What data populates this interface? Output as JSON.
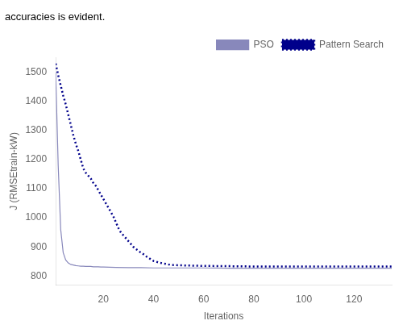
{
  "chart_data": {
    "type": "line",
    "title": "accuracies is evident.",
    "xlabel": "Iterations",
    "ylabel": "J (RMSEtrain-kW)",
    "xlim": [
      1,
      135
    ],
    "ylim": [
      770,
      1550
    ],
    "xticks": [
      20,
      40,
      60,
      80,
      100,
      120
    ],
    "yticks": [
      800,
      900,
      1000,
      1100,
      1200,
      1300,
      1400,
      1500
    ],
    "grid": false,
    "legend": "upper right",
    "series": [
      {
        "name": "PSO",
        "color": "#8888bb",
        "line_style": "solid",
        "marker": "none",
        "x": [
          1,
          2,
          3,
          4,
          5,
          6,
          7,
          8,
          9,
          10,
          11,
          12,
          13,
          14,
          15,
          16,
          17,
          18,
          19,
          20,
          25,
          30,
          35,
          40,
          50,
          60,
          70,
          80,
          90,
          100,
          110,
          120,
          130,
          135
        ],
        "values": [
          1500,
          1180,
          960,
          880,
          855,
          845,
          840,
          838,
          836,
          835,
          834,
          834,
          833,
          833,
          833,
          832,
          832,
          832,
          831,
          831,
          830,
          829,
          829,
          828,
          828,
          828,
          827,
          827,
          827,
          827,
          827,
          827,
          827,
          827
        ]
      },
      {
        "name": "Pattern Search",
        "color": "#00008B",
        "line_style": "dotted",
        "marker": "none",
        "x": [
          1,
          2,
          3,
          4,
          5,
          6,
          7,
          8,
          9,
          10,
          11,
          12,
          13,
          14,
          15,
          16,
          17,
          18,
          19,
          20,
          21,
          22,
          23,
          24,
          25,
          26,
          27,
          28,
          29,
          30,
          31,
          32,
          33,
          34,
          35,
          36,
          37,
          38,
          39,
          40,
          42,
          44,
          46,
          48,
          50,
          55,
          60,
          70,
          80,
          90,
          100,
          110,
          120,
          130,
          135
        ],
        "values": [
          1530,
          1490,
          1455,
          1420,
          1390,
          1355,
          1320,
          1285,
          1255,
          1230,
          1200,
          1170,
          1155,
          1145,
          1135,
          1120,
          1110,
          1095,
          1080,
          1065,
          1050,
          1035,
          1020,
          1005,
          985,
          965,
          950,
          940,
          930,
          920,
          910,
          900,
          893,
          887,
          880,
          875,
          868,
          863,
          857,
          852,
          847,
          843,
          840,
          838,
          837,
          836,
          835,
          834,
          833,
          833,
          833,
          833,
          833,
          833,
          833
        ]
      }
    ]
  }
}
